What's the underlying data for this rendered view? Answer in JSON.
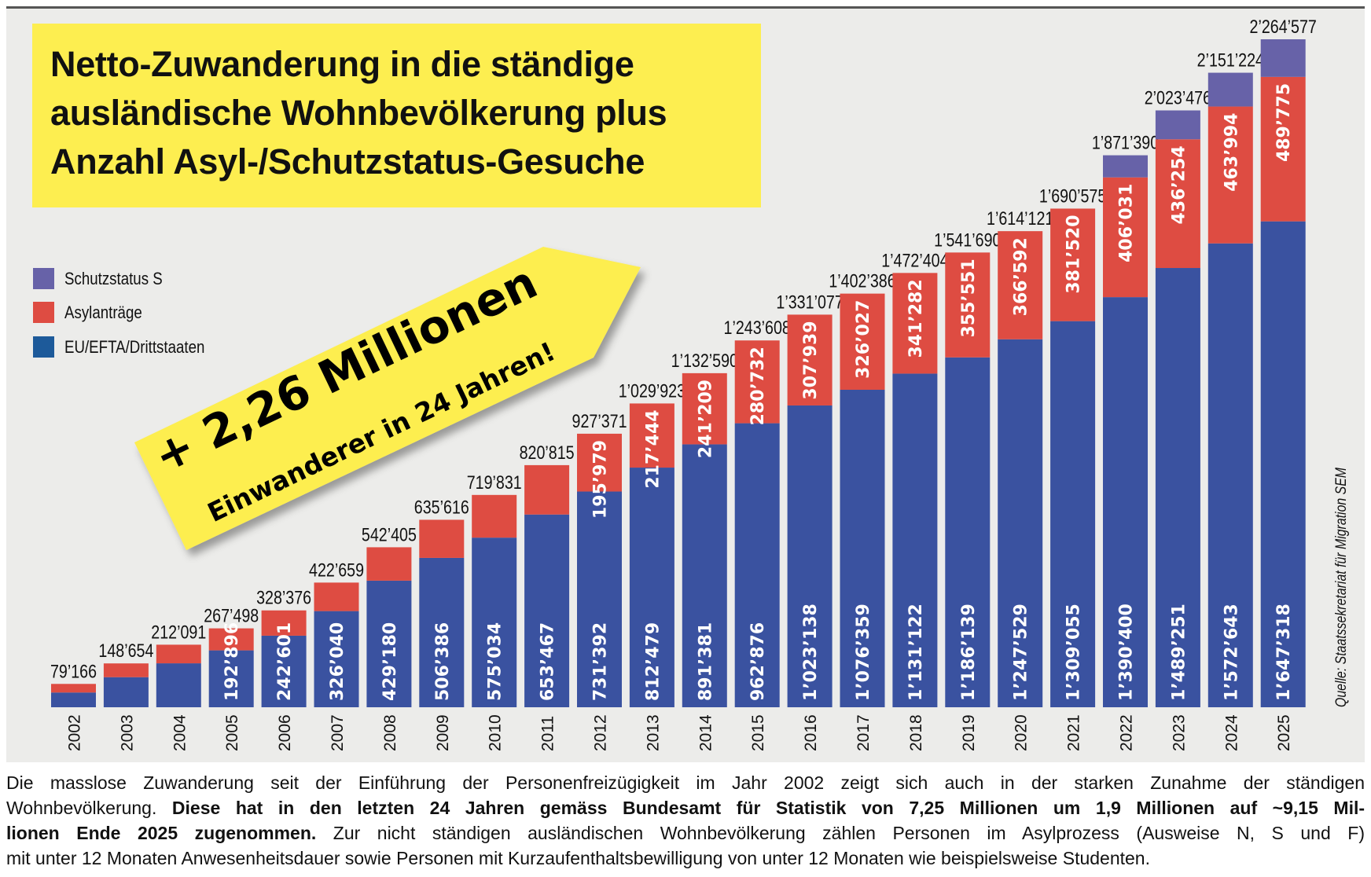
{
  "title": {
    "lines": [
      "Netto-Zuwanderung in die ständige",
      "ausländische Wohnbevölkerung plus",
      "Anzahl Asyl-/Schutzstatus-Gesuche"
    ]
  },
  "banner": {
    "headline": "+ 2,26 Millionen",
    "subline": "Einwanderer in 24 Jahren!"
  },
  "source": "Quelle: Staatssekretariat für Migration SEM",
  "colors": {
    "eu": "#3a52a0",
    "asyl": "#de4c42",
    "schutz": "#6762a8",
    "banner": "#fdee50",
    "background": "#ececea"
  },
  "chart_data": {
    "type": "bar",
    "stacked": true,
    "title": "Netto-Zuwanderung in die ständige ausländische Wohnbevölkerung plus Anzahl Asyl-/Schutzstatus-Gesuche",
    "legend_placement": "top-left",
    "grid": false,
    "categories": [
      "2002",
      "2003",
      "2004",
      "2005",
      "2006",
      "2007",
      "2008",
      "2009",
      "2010",
      "2011",
      "2012",
      "2013",
      "2014",
      "2015",
      "2016",
      "2017",
      "2018",
      "2019",
      "2020",
      "2021",
      "2022",
      "2023",
      "2024",
      "2025"
    ],
    "ylim": [
      0,
      2264577
    ],
    "series": [
      {
        "name": "EU/EFTA/Drittstaaten",
        "color": "#3a52a0",
        "values": [
          50000,
          102000,
          149000,
          192896,
          242601,
          326040,
          429180,
          506386,
          575034,
          653467,
          731392,
          812479,
          891381,
          962876,
          1023138,
          1076359,
          1131122,
          1186139,
          1247529,
          1309055,
          1390400,
          1489251,
          1572643,
          1647318
        ],
        "labels": [
          null,
          null,
          null,
          "192’896",
          "242’601",
          "326’040",
          "429’180",
          "506’386",
          "575’034",
          "653’467",
          "731’392",
          "812’479",
          "891’381",
          "962’876",
          "1’023’138",
          "1’076’359",
          "1’131’122",
          "1’186’139",
          "1’247’529",
          "1’309’055",
          "1’390’400",
          "1’489’251",
          "1’572’643",
          "1’647’318"
        ]
      },
      {
        "name": "Asylanträge",
        "color": "#de4c42",
        "values": [
          29166,
          46654,
          63091,
          74602,
          85775,
          96619,
          113225,
          129230,
          144797,
          167348,
          195979,
          217444,
          241209,
          280732,
          307939,
          326027,
          341282,
          355551,
          366592,
          381520,
          406031,
          436254,
          463994,
          489775
        ],
        "labels": [
          null,
          null,
          null,
          null,
          null,
          null,
          null,
          null,
          null,
          null,
          "195’979",
          "217’444",
          "241’209",
          "280’732",
          "307’939",
          "326’027",
          "341’282",
          "355’551",
          "366’592",
          "381’520",
          "406’031",
          "436’254",
          "463’994",
          "489’775"
        ]
      },
      {
        "name": "Schutzstatus S",
        "color": "#6762a8",
        "values": [
          0,
          0,
          0,
          0,
          0,
          0,
          0,
          0,
          0,
          0,
          0,
          0,
          0,
          0,
          0,
          0,
          0,
          0,
          0,
          0,
          74959,
          97971,
          114587,
          127484
        ],
        "labels": []
      }
    ],
    "totals": [
      79166,
      148654,
      212091,
      267498,
      328376,
      422659,
      542405,
      635616,
      719831,
      820815,
      927371,
      1029923,
      1132590,
      1243608,
      1331077,
      1402386,
      1472404,
      1541690,
      1614121,
      1690575,
      1871390,
      2023476,
      2151224,
      2264577
    ],
    "total_labels": [
      "79’166",
      "148’654",
      "212’091",
      "267’498",
      "328’376",
      "422’659",
      "542’405",
      "635’616",
      "719’831",
      "820’815",
      "927’371",
      "1’029’923",
      "1’132’590",
      "1’243’608",
      "1’331’077",
      "1’402’386",
      "1’472’404",
      "1’541’690",
      "1’614’121",
      "1’690’575",
      "1’871’390",
      "2’023’476",
      "2’151’224",
      "2’264’577"
    ]
  },
  "legend": [
    {
      "label": "Schutzstatus S",
      "color": "#6762a8"
    },
    {
      "label": "Asylanträge",
      "color": "#de4c42"
    },
    {
      "label": "EU/EFTA/Drittstaaten",
      "color": "#3a52a0"
    }
  ],
  "paragraph": {
    "lines": [
      [
        {
          "t": "Die masslose Zuwanderung seit der Einführung der Personenfreizügigkeit im Jahr 2002 zeigt sich auch in der starken Zunahme der ständigen",
          "b": false
        }
      ],
      [
        {
          "t": "Wohnbevölkerung. ",
          "b": false
        },
        {
          "t": "Diese hat in den letzten 24 Jahren gemäss Bundesamt für Statistik von 7,25 Millionen um 1,9 Millionen auf ~9,15 Mil-",
          "b": true
        }
      ],
      [
        {
          "t": "lionen Ende 2025 zugenommen.",
          "b": true
        },
        {
          "t": " Zur nicht ständigen ausländischen Wohnbevölkerung zählen Personen im Asylprozess (Ausweise N, S und F)",
          "b": false
        }
      ],
      [
        {
          "t": "mit unter 12 Monaten Anwesenheitsdauer sowie Personen mit Kurzaufenthaltsbewilligung von unter 12 Monaten wie beispielsweise Studenten.",
          "b": false
        }
      ]
    ]
  }
}
